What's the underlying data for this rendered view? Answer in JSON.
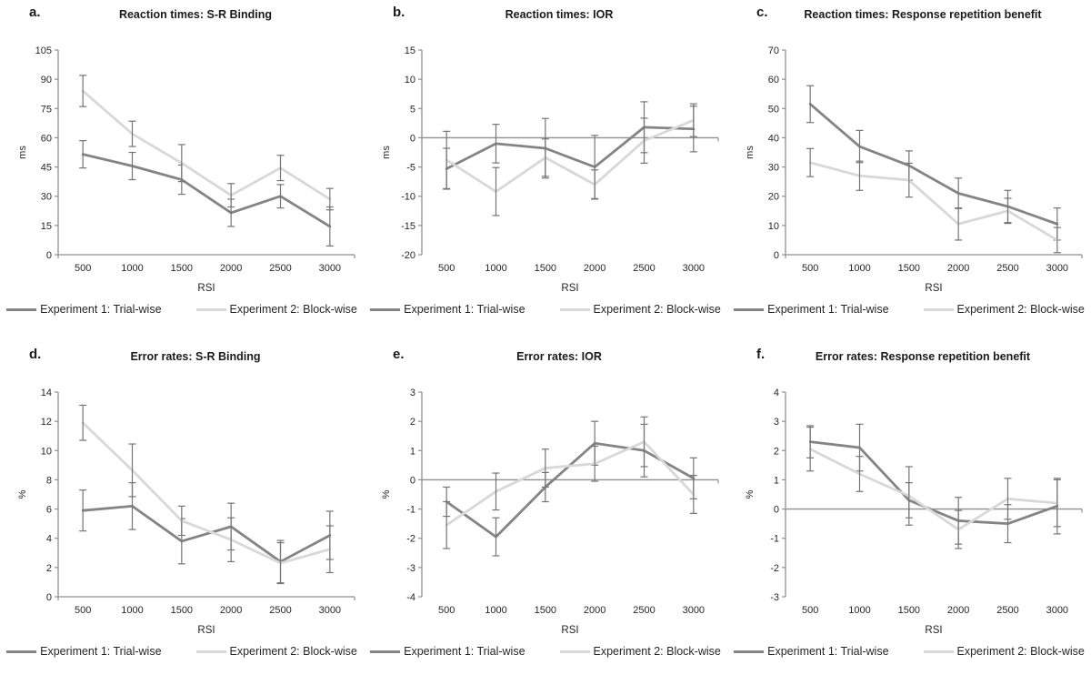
{
  "figure": {
    "background": "#ffffff",
    "xlabel": "RSI",
    "x_categories": [
      "500",
      "1000",
      "1500",
      "2000",
      "2500",
      "3000"
    ],
    "legend": [
      {
        "label": "Experiment 1: Trial-wise",
        "color": "#848484"
      },
      {
        "label": "Experiment 2: Block-wise",
        "color": "#d8d8d8"
      }
    ]
  },
  "colors": {
    "exp1": "#848484",
    "exp2": "#d8d8d8",
    "error": "#757575",
    "axis": "#8f8f8f",
    "text": "#262626"
  },
  "chart_data": [
    {
      "type": "line",
      "letter": "a.",
      "title": "Reaction times: S-R Binding",
      "xlabel": "RSI",
      "ylabel": "ms",
      "ylim": [
        0,
        105
      ],
      "ytick_step": 15,
      "grid": false,
      "legend_position": "bottom",
      "categories": [
        500,
        1000,
        1500,
        2000,
        2500,
        3000
      ],
      "series": [
        {
          "name": "Experiment 1: Trial-wise",
          "values": [
            51.5,
            45.5,
            38.5,
            21.5,
            30,
            14.5
          ],
          "errors": [
            7,
            7,
            7.5,
            7,
            6,
            10
          ]
        },
        {
          "name": "Experiment 2: Block-wise",
          "values": [
            84,
            62,
            47,
            30.5,
            44.5,
            28.5
          ],
          "errors": [
            8,
            6.5,
            9.5,
            6,
            6.5,
            5.5
          ]
        }
      ]
    },
    {
      "type": "line",
      "letter": "b.",
      "title": "Reaction times: IOR",
      "xlabel": "RSI",
      "ylabel": "ms",
      "ylim": [
        -20,
        15
      ],
      "ytick_step": 5,
      "grid": false,
      "legend_position": "bottom",
      "categories": [
        500,
        1000,
        1500,
        2000,
        2500,
        3000
      ],
      "series": [
        {
          "name": "Experiment 1: Trial-wise",
          "values": [
            -5.3,
            -1,
            -1.8,
            -5,
            1.8,
            1.5
          ],
          "errors": [
            3.5,
            3.3,
            5.1,
            5.4,
            4.35,
            3.9
          ]
        },
        {
          "name": "Experiment 2: Block-wise",
          "values": [
            -3.8,
            -9.2,
            -3.4,
            -8,
            -0.5,
            3
          ],
          "errors": [
            4.9,
            4.1,
            3.2,
            2.5,
            3.85,
            2.8
          ]
        }
      ]
    },
    {
      "type": "line",
      "letter": "c.",
      "title": "Reaction times: Response repetition benefit",
      "xlabel": "RSI",
      "ylabel": "ms",
      "ylim": [
        0,
        70
      ],
      "ytick_step": 10,
      "grid": false,
      "legend_position": "bottom",
      "categories": [
        500,
        1000,
        1500,
        2000,
        2500,
        3000
      ],
      "series": [
        {
          "name": "Experiment 1: Trial-wise",
          "values": [
            51.5,
            37,
            30.5,
            21,
            16.5,
            10.5
          ],
          "errors": [
            6.3,
            5.5,
            5,
            5.2,
            5.5,
            5.5
          ]
        },
        {
          "name": "Experiment 2: Block-wise",
          "values": [
            31.5,
            27,
            25.5,
            10.5,
            15,
            5
          ],
          "errors": [
            4.8,
            5,
            5.8,
            5.5,
            4.3,
            4.3
          ]
        }
      ]
    },
    {
      "type": "line",
      "letter": "d.",
      "title": "Error rates: S-R Binding",
      "xlabel": "RSI",
      "ylabel": "%",
      "ylim": [
        0,
        14
      ],
      "ytick_step": 2,
      "grid": false,
      "legend_position": "bottom",
      "categories": [
        500,
        1000,
        1500,
        2000,
        2500,
        3000
      ],
      "series": [
        {
          "name": "Experiment 1: Trial-wise",
          "values": [
            5.9,
            6.2,
            3.8,
            4.8,
            2.4,
            4.2
          ],
          "errors": [
            1.4,
            1.6,
            1.55,
            1.6,
            1.45,
            1.65
          ]
        },
        {
          "name": "Experiment 2: Block-wise",
          "values": [
            11.9,
            8.65,
            5.2,
            3.9,
            2.3,
            3.25
          ],
          "errors": [
            1.2,
            1.8,
            1.0,
            1.5,
            1.4,
            1.6
          ]
        }
      ]
    },
    {
      "type": "line",
      "letter": "e.",
      "title": "Error rates: IOR",
      "xlabel": "RSI",
      "ylabel": "%",
      "ylim": [
        -4,
        3
      ],
      "ytick_step": 1,
      "grid": false,
      "legend_position": "bottom",
      "categories": [
        500,
        1000,
        1500,
        2000,
        2500,
        3000
      ],
      "series": [
        {
          "name": "Experiment 1: Trial-wise",
          "values": [
            -0.75,
            -1.95,
            -0.25,
            1.25,
            1.0,
            0.05
          ],
          "errors": [
            0.5,
            0.65,
            0.5,
            0.75,
            0.9,
            0.7
          ]
        },
        {
          "name": "Experiment 2: Block-wise",
          "values": [
            -1.55,
            -0.4,
            0.4,
            0.55,
            1.3,
            -0.5
          ],
          "errors": [
            0.8,
            0.63,
            0.65,
            0.6,
            0.85,
            0.65
          ]
        }
      ]
    },
    {
      "type": "line",
      "letter": "f.",
      "title": "Error rates: Response repetition benefit",
      "xlabel": "RSI",
      "ylabel": "%",
      "ylim": [
        -3,
        4
      ],
      "ytick_step": 1,
      "grid": false,
      "legend_position": "bottom",
      "categories": [
        500,
        1000,
        1500,
        2000,
        2500,
        3000
      ],
      "series": [
        {
          "name": "Experiment 1: Trial-wise",
          "values": [
            2.3,
            2.1,
            0.3,
            -0.4,
            -0.5,
            0.1
          ],
          "errors": [
            0.55,
            0.8,
            0.6,
            0.8,
            0.65,
            0.95
          ]
        },
        {
          "name": "Experiment 2: Block-wise",
          "values": [
            2.05,
            1.2,
            0.45,
            -0.7,
            0.35,
            0.2
          ],
          "errors": [
            0.75,
            0.6,
            1.0,
            0.65,
            0.7,
            0.8
          ]
        }
      ]
    }
  ]
}
